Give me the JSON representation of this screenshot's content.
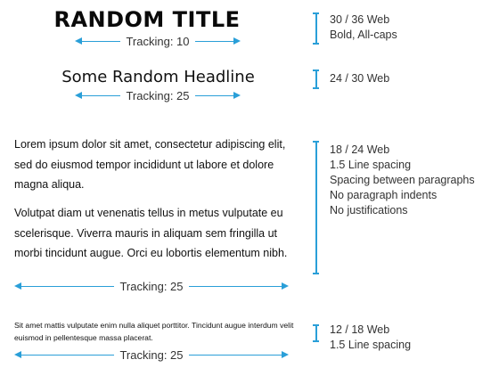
{
  "accent_color": "#2a9fd8",
  "samples": [
    {
      "text": "RANDOM TITLE",
      "tracking": "Tracking: 10",
      "spec_lines": [
        "30 / 36 Web",
        "Bold, All-caps"
      ]
    },
    {
      "text": "Some Random Headline",
      "tracking": "Tracking: 25",
      "spec_lines": [
        "24 / 30 Web"
      ]
    },
    {
      "paragraphs": [
        "Lorem ipsum dolor sit amet, consectetur adipiscing elit, sed do eiusmod tempor incididunt ut labore et dolore magna aliqua.",
        "Volutpat diam ut venenatis tellus in metus vulputate eu scelerisque. Viverra mauris in aliquam sem fringilla ut morbi tincidunt augue. Orci eu lobortis elementum nibh."
      ],
      "tracking": "Tracking: 25",
      "spec_lines": [
        "18 / 24 Web",
        "1.5 Line spacing",
        "Spacing between paragraphs",
        "No paragraph indents",
        "No justifications"
      ]
    },
    {
      "paragraphs": [
        "Sit amet mattis vulputate enim nulla aliquet porttitor. Tincidunt augue interdum velit euismod in pellentesque massa placerat."
      ],
      "tracking": "Tracking: 25",
      "spec_lines": [
        "12 / 18 Web",
        "1.5 Line spacing"
      ]
    }
  ]
}
